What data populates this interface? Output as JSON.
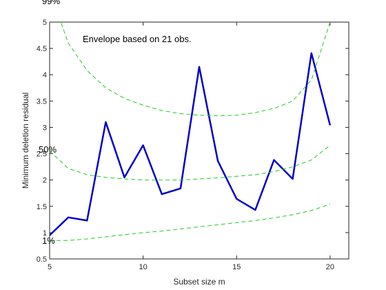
{
  "chart_data": {
    "type": "line",
    "title": "",
    "xlabel": "Subset size m",
    "ylabel": "Minimum deletion residual",
    "xlim": [
      5,
      21
    ],
    "ylim": [
      0.5,
      5
    ],
    "xticks": [
      5,
      10,
      15,
      20
    ],
    "yticks": [
      0.5,
      1,
      1.5,
      2,
      2.5,
      3,
      3.5,
      4,
      4.5,
      5
    ],
    "grid": false,
    "annotation": "Envelope based on 21 obs.",
    "band_labels": [
      "99%",
      "50%",
      "1%"
    ],
    "series": [
      {
        "kind": "observed",
        "color": "#0000cc",
        "x": [
          5,
          6,
          7,
          8,
          9,
          10,
          11,
          12,
          13,
          14,
          15,
          16,
          17,
          18,
          19,
          20
        ],
        "values": [
          0.95,
          1.29,
          1.23,
          3.1,
          2.05,
          2.66,
          1.73,
          1.84,
          4.15,
          2.36,
          1.64,
          1.43,
          2.38,
          2.02,
          4.41,
          3.04
        ]
      },
      {
        "kind": "envelope-99",
        "color": "#22cc22",
        "x": [
          5,
          6,
          7,
          8,
          9,
          10,
          11,
          12,
          13,
          14,
          15,
          16,
          17,
          18,
          19,
          20
        ],
        "values": [
          5.6,
          4.6,
          4.08,
          3.75,
          3.55,
          3.42,
          3.32,
          3.26,
          3.23,
          3.22,
          3.23,
          3.28,
          3.36,
          3.5,
          3.9,
          5.0
        ]
      },
      {
        "kind": "envelope-50",
        "color": "#22cc22",
        "x": [
          5,
          6,
          7,
          8,
          9,
          10,
          11,
          12,
          13,
          14,
          15,
          16,
          17,
          18,
          19,
          20
        ],
        "values": [
          2.55,
          2.22,
          2.1,
          2.05,
          2.02,
          2.0,
          2.0,
          2.0,
          2.02,
          2.04,
          2.07,
          2.1,
          2.16,
          2.25,
          2.38,
          2.66
        ]
      },
      {
        "kind": "envelope-1",
        "color": "#22cc22",
        "x": [
          5,
          6,
          7,
          8,
          9,
          10,
          11,
          12,
          13,
          14,
          15,
          16,
          17,
          18,
          19,
          20
        ],
        "values": [
          0.85,
          0.85,
          0.88,
          0.92,
          0.96,
          1.0,
          1.03,
          1.07,
          1.11,
          1.15,
          1.19,
          1.23,
          1.28,
          1.34,
          1.42,
          1.54
        ]
      }
    ]
  }
}
